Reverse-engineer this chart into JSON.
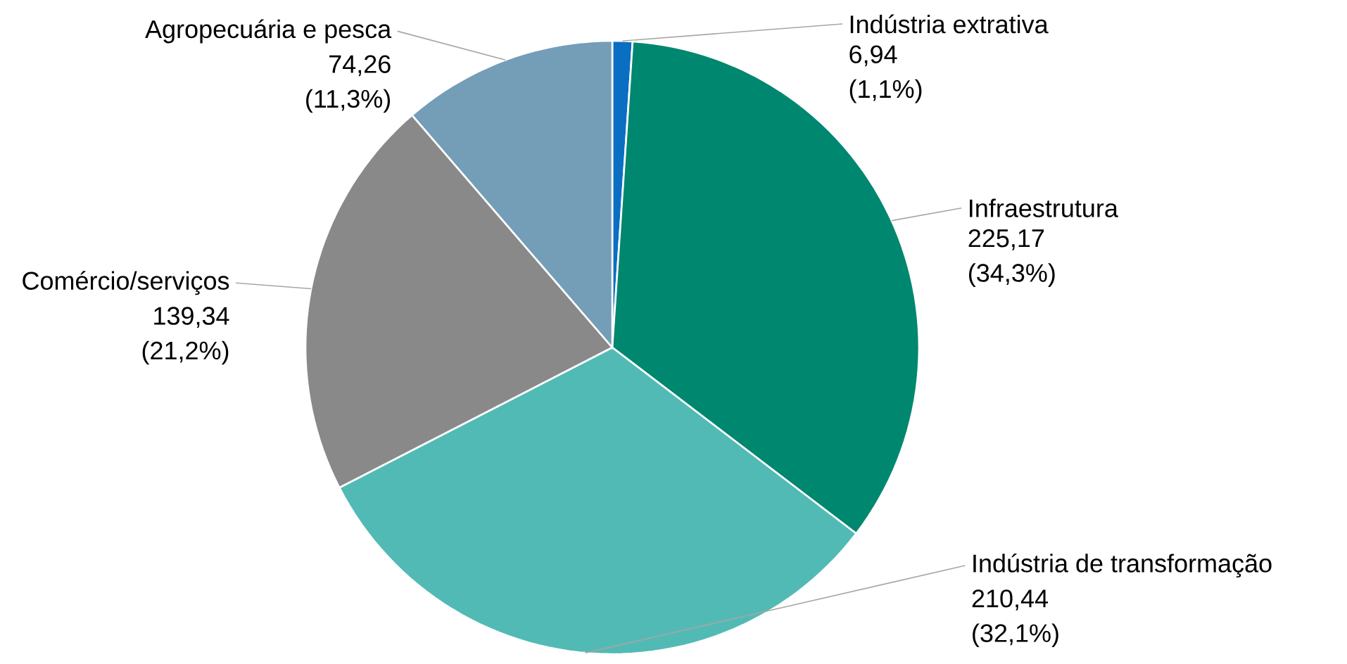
{
  "chart_data": {
    "type": "pie",
    "categories": [
      "Indústria extrativa",
      "Infraestrutura",
      "Indústria de transformação",
      "Comércio/serviços",
      "Agropecuária e pesca"
    ],
    "values": [
      6.94,
      225.17,
      210.44,
      139.34,
      74.26
    ],
    "colors": [
      "#0a6fc2",
      "#00876f",
      "#52bab5",
      "#898989",
      "#749db8"
    ],
    "value_labels": [
      "6,94 (1,1%)",
      "225,17 (34,3%)",
      "210,44 (32,1%)",
      "139,34 (21,2%)",
      "74,26 (11,3%)"
    ]
  }
}
